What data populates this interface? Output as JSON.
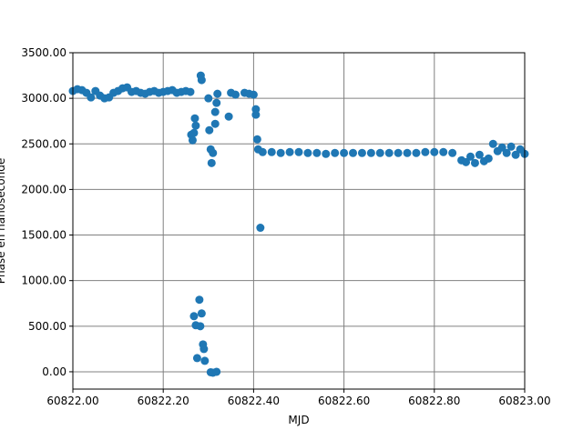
{
  "chart_data": {
    "type": "scatter",
    "x_label": "MJD",
    "y_label": "Phase en nanoseconde",
    "xlim": [
      60822.0,
      60823.0
    ],
    "ylim": [
      -190,
      3500
    ],
    "xticks": [
      {
        "value": 60822.0,
        "label": "60822.00"
      },
      {
        "value": 60822.2,
        "label": "60822.20"
      },
      {
        "value": 60822.4,
        "label": "60822.40"
      },
      {
        "value": 60822.6,
        "label": "60822.60"
      },
      {
        "value": 60822.8,
        "label": "60822.80"
      },
      {
        "value": 60823.0,
        "label": "60823.00"
      }
    ],
    "yticks": [
      {
        "value": 0,
        "label": "0.00"
      },
      {
        "value": 500,
        "label": "500.00"
      },
      {
        "value": 1000,
        "label": "1000.00"
      },
      {
        "value": 1500,
        "label": "1500.00"
      },
      {
        "value": 2000,
        "label": "2000.00"
      },
      {
        "value": 2500,
        "label": "2500.00"
      },
      {
        "value": 3000,
        "label": "3000.00"
      },
      {
        "value": 3500,
        "label": "3500.00"
      }
    ],
    "grid": true,
    "series": [
      {
        "color": "#1f77b4",
        "x": [
          60822.0,
          60822.01,
          60822.02,
          60822.03,
          60822.04,
          60822.05,
          60822.06,
          60822.07,
          60822.08,
          60822.09,
          60822.1,
          60822.11,
          60822.12,
          60822.13,
          60822.14,
          60822.15,
          60822.16,
          60822.17,
          60822.18,
          60822.19,
          60822.2,
          60822.21,
          60822.22,
          60822.23,
          60822.24,
          60822.25,
          60822.26,
          60822.262,
          60822.265,
          60822.268,
          60822.27,
          60822.272,
          60822.268,
          60822.272,
          60822.275,
          60822.28,
          60822.282,
          60822.285,
          60822.288,
          60822.29,
          60822.292,
          60822.285,
          60822.283,
          60822.3,
          60822.302,
          60822.305,
          60822.307,
          60822.31,
          60822.305,
          60822.31,
          60822.318,
          60822.315,
          60822.318,
          60822.315,
          60822.32,
          60822.345,
          60822.35,
          60822.36,
          60822.38,
          60822.39,
          60822.4,
          60822.405,
          60822.405,
          60822.408,
          60822.415,
          60822.41,
          60822.42,
          60822.44,
          60822.46,
          60822.48,
          60822.5,
          60822.52,
          60822.54,
          60822.56,
          60822.58,
          60822.6,
          60822.62,
          60822.64,
          60822.66,
          60822.68,
          60822.7,
          60822.72,
          60822.74,
          60822.76,
          60822.78,
          60822.8,
          60822.82,
          60822.84,
          60822.86,
          60822.87,
          60822.88,
          60822.89,
          60822.9,
          60822.91,
          60822.92,
          60822.93,
          60822.94,
          60822.95,
          60822.96,
          60822.97,
          60822.98,
          60822.99,
          60823.0
        ],
        "values": [
          3080,
          3100,
          3090,
          3060,
          3010,
          3080,
          3030,
          3000,
          3010,
          3060,
          3080,
          3110,
          3120,
          3070,
          3080,
          3060,
          3050,
          3070,
          3080,
          3060,
          3070,
          3080,
          3090,
          3060,
          3070,
          3080,
          3070,
          2600,
          2540,
          2620,
          2780,
          2700,
          610,
          510,
          150,
          790,
          500,
          640,
          300,
          250,
          120,
          3200,
          3250,
          3000,
          2650,
          2440,
          2290,
          2400,
          -5,
          -10,
          0,
          2850,
          2950,
          2720,
          3050,
          2800,
          3060,
          3040,
          3060,
          3050,
          3040,
          2880,
          2820,
          2550,
          1580,
          2440,
          2410,
          2410,
          2400,
          2410,
          2410,
          2400,
          2400,
          2390,
          2400,
          2400,
          2400,
          2400,
          2400,
          2400,
          2400,
          2400,
          2400,
          2400,
          2410,
          2410,
          2410,
          2400,
          2320,
          2300,
          2360,
          2290,
          2380,
          2310,
          2340,
          2500,
          2420,
          2460,
          2400,
          2470,
          2380,
          2440,
          2390
        ]
      }
    ]
  }
}
